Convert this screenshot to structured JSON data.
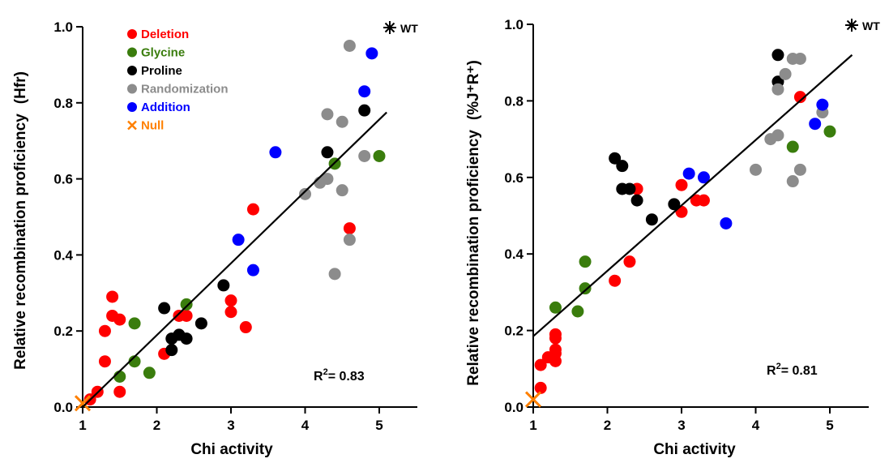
{
  "chart_data": [
    {
      "type": "scatter",
      "xlabel": "Chi activity",
      "ylabel": "Relative recombination proficiency",
      "ylabel_unit": "(Hfr)",
      "xlim": [
        1,
        5.5
      ],
      "ylim": [
        0,
        1
      ],
      "xticks": [
        1,
        2,
        3,
        4,
        5
      ],
      "yticks": [
        0.0,
        0.2,
        0.4,
        0.6,
        0.8,
        1.0
      ],
      "ytick_labels": [
        "0.0",
        "0.2",
        "0.4",
        "0.6",
        "0.8",
        "1.0"
      ],
      "annotation": "R²= 0.83",
      "annotation_parts": {
        "base": "R",
        "sup": "2",
        "rest": "= 0.83"
      },
      "wt_label": "WT",
      "fit_line": {
        "x": [
          1.0,
          5.1
        ],
        "y": [
          0.0,
          0.775
        ]
      },
      "legend": {
        "placement": "top-left",
        "entries": [
          {
            "name": "Deletion",
            "color": "#ff0000",
            "marker": "circle"
          },
          {
            "name": "Glycine",
            "color": "#3a7d0d",
            "marker": "circle"
          },
          {
            "name": "Proline",
            "color": "#000000",
            "marker": "circle"
          },
          {
            "name": "Randomization",
            "color": "#8c8c8c",
            "marker": "circle"
          },
          {
            "name": "Addition",
            "color": "#0000ff",
            "marker": "circle"
          },
          {
            "name": "Null",
            "color": "#ff8000",
            "marker": "x"
          }
        ]
      },
      "series": [
        {
          "name": "Deletion",
          "color": "#ff0000",
          "points": [
            [
              1.1,
              0.02
            ],
            [
              1.2,
              0.04
            ],
            [
              1.3,
              0.12
            ],
            [
              1.3,
              0.2
            ],
            [
              1.4,
              0.29
            ],
            [
              1.4,
              0.24
            ],
            [
              1.5,
              0.23
            ],
            [
              1.5,
              0.04
            ],
            [
              2.1,
              0.14
            ],
            [
              2.3,
              0.24
            ],
            [
              2.4,
              0.24
            ],
            [
              3.0,
              0.28
            ],
            [
              3.0,
              0.25
            ],
            [
              3.2,
              0.21
            ],
            [
              3.3,
              0.52
            ],
            [
              4.6,
              0.47
            ]
          ]
        },
        {
          "name": "Glycine",
          "color": "#3a7d0d",
          "points": [
            [
              1.5,
              0.08
            ],
            [
              1.7,
              0.22
            ],
            [
              1.7,
              0.12
            ],
            [
              1.9,
              0.09
            ],
            [
              2.4,
              0.27
            ],
            [
              4.4,
              0.64
            ],
            [
              5.0,
              0.66
            ]
          ]
        },
        {
          "name": "Proline",
          "color": "#000000",
          "points": [
            [
              2.1,
              0.26
            ],
            [
              2.2,
              0.15
            ],
            [
              2.2,
              0.18
            ],
            [
              2.3,
              0.19
            ],
            [
              2.4,
              0.18
            ],
            [
              2.6,
              0.22
            ],
            [
              2.9,
              0.32
            ],
            [
              4.3,
              0.67
            ],
            [
              4.8,
              0.78
            ]
          ]
        },
        {
          "name": "Randomization",
          "color": "#8c8c8c",
          "points": [
            [
              4.0,
              0.56
            ],
            [
              4.2,
              0.59
            ],
            [
              4.3,
              0.6
            ],
            [
              4.3,
              0.77
            ],
            [
              4.5,
              0.75
            ],
            [
              4.5,
              0.57
            ],
            [
              4.4,
              0.35
            ],
            [
              4.6,
              0.44
            ],
            [
              4.6,
              0.95
            ],
            [
              4.8,
              0.66
            ]
          ]
        },
        {
          "name": "Addition",
          "color": "#0000ff",
          "points": [
            [
              3.1,
              0.44
            ],
            [
              3.3,
              0.36
            ],
            [
              3.6,
              0.67
            ],
            [
              4.8,
              0.83
            ],
            [
              4.9,
              0.93
            ]
          ]
        },
        {
          "name": "Null",
          "color": "#ff8000",
          "marker": "x",
          "points": [
            [
              1.0,
              0.01
            ]
          ]
        }
      ]
    },
    {
      "type": "scatter",
      "xlabel": "Chi activity",
      "ylabel": "Relative recombination proficiency",
      "ylabel_unit": "(%J⁺R⁺)",
      "xlim": [
        1,
        5.5
      ],
      "ylim": [
        0,
        1
      ],
      "xticks": [
        1,
        2,
        3,
        4,
        5
      ],
      "yticks": [
        0.0,
        0.2,
        0.4,
        0.6,
        0.8,
        1.0
      ],
      "ytick_labels": [
        "0.0",
        "0.2",
        "0.4",
        "0.6",
        "0.8",
        "1.0"
      ],
      "annotation": "R²= 0.81",
      "annotation_parts": {
        "base": "R",
        "sup": "2",
        "rest": "= 0.81"
      },
      "wt_label": "WT",
      "fit_line": {
        "x": [
          1.0,
          5.3
        ],
        "y": [
          0.185,
          0.92
        ]
      },
      "series": [
        {
          "name": "Deletion",
          "color": "#ff0000",
          "points": [
            [
              1.1,
              0.11
            ],
            [
              1.1,
              0.05
            ],
            [
              1.2,
              0.13
            ],
            [
              1.3,
              0.12
            ],
            [
              1.3,
              0.14
            ],
            [
              1.3,
              0.15
            ],
            [
              1.3,
              0.18
            ],
            [
              1.3,
              0.19
            ],
            [
              2.1,
              0.33
            ],
            [
              2.3,
              0.38
            ],
            [
              2.4,
              0.57
            ],
            [
              3.0,
              0.58
            ],
            [
              3.0,
              0.51
            ],
            [
              3.2,
              0.54
            ],
            [
              3.3,
              0.54
            ],
            [
              4.6,
              0.81
            ]
          ]
        },
        {
          "name": "Glycine",
          "color": "#3a7d0d",
          "points": [
            [
              1.3,
              0.26
            ],
            [
              1.6,
              0.25
            ],
            [
              1.7,
              0.31
            ],
            [
              1.7,
              0.38
            ],
            [
              4.5,
              0.68
            ],
            [
              5.0,
              0.72
            ]
          ]
        },
        {
          "name": "Proline",
          "color": "#000000",
          "points": [
            [
              2.1,
              0.65
            ],
            [
              2.2,
              0.63
            ],
            [
              2.2,
              0.57
            ],
            [
              2.3,
              0.57
            ],
            [
              2.4,
              0.54
            ],
            [
              2.6,
              0.49
            ],
            [
              2.9,
              0.53
            ],
            [
              4.3,
              0.85
            ],
            [
              4.3,
              0.92
            ]
          ]
        },
        {
          "name": "Randomization",
          "color": "#8c8c8c",
          "points": [
            [
              4.0,
              0.62
            ],
            [
              4.2,
              0.7
            ],
            [
              4.3,
              0.71
            ],
            [
              4.3,
              0.83
            ],
            [
              4.4,
              0.87
            ],
            [
              4.5,
              0.91
            ],
            [
              4.6,
              0.91
            ],
            [
              4.5,
              0.59
            ],
            [
              4.6,
              0.62
            ],
            [
              4.9,
              0.77
            ]
          ]
        },
        {
          "name": "Addition",
          "color": "#0000ff",
          "points": [
            [
              3.1,
              0.61
            ],
            [
              3.3,
              0.6
            ],
            [
              3.6,
              0.48
            ],
            [
              4.8,
              0.74
            ],
            [
              4.9,
              0.79
            ]
          ]
        },
        {
          "name": "Null",
          "color": "#ff8000",
          "marker": "x",
          "points": [
            [
              1.0,
              0.02
            ]
          ]
        }
      ]
    }
  ]
}
